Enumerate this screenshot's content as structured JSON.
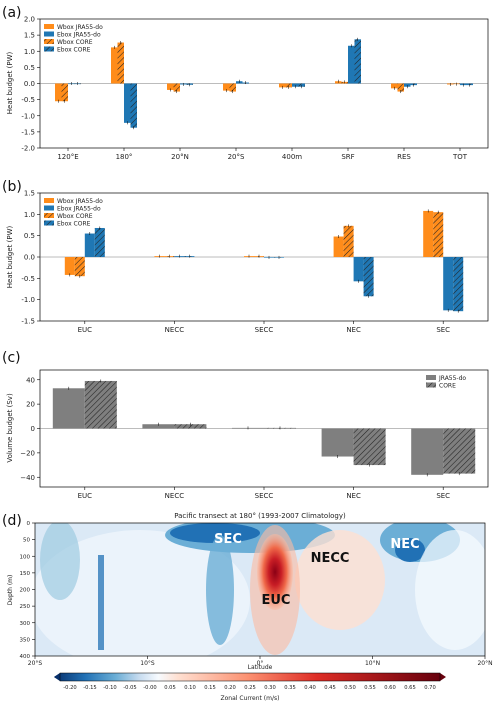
{
  "colors": {
    "wbox": "#ff8c1a",
    "ebox": "#1f77b4",
    "gray": "#7f7f7f",
    "hatch": "#222222"
  },
  "panels": {
    "a": "(a)",
    "b": "(b)",
    "c": "(c)",
    "d": "(d)"
  },
  "chart_data": [
    {
      "type": "bar",
      "ylabel": "Heat budget (PW)",
      "ylim": [
        -2.0,
        2.0
      ],
      "yticks": [
        "-2.0",
        "-1.5",
        "-1.0",
        "-0.5",
        "0.0",
        "0.5",
        "1.0",
        "1.5",
        "2.0"
      ],
      "categories": [
        "120°E",
        "180°",
        "20°N",
        "20°S",
        "400m",
        "SRF",
        "RES",
        "TOT"
      ],
      "legend_position": "top-left",
      "series": [
        {
          "name": "Wbox JRA55-do",
          "style": "wbox",
          "values": [
            -0.55,
            1.12,
            -0.2,
            -0.22,
            -0.12,
            0.07,
            -0.15,
            -0.03
          ]
        },
        {
          "name": "Ebox JRA55-do",
          "style": "ebox",
          "values": [
            0.0,
            -1.22,
            -0.03,
            0.07,
            -0.1,
            1.17,
            -0.1,
            -0.05
          ]
        },
        {
          "name": "Wbox CORE",
          "style": "wbox-hatch",
          "values": [
            -0.55,
            1.27,
            -0.25,
            -0.25,
            -0.12,
            0.05,
            -0.25,
            -0.02
          ]
        },
        {
          "name": "Ebox CORE",
          "style": "ebox-hatch",
          "values": [
            0.0,
            -1.37,
            -0.04,
            0.03,
            -0.1,
            1.37,
            -0.05,
            -0.05
          ]
        }
      ]
    },
    {
      "type": "bar",
      "ylabel": "Heat budget (PW)",
      "ylim": [
        -1.5,
        1.5
      ],
      "yticks": [
        "-1.5",
        "-1.0",
        "-0.5",
        "0.0",
        "0.5",
        "1.0",
        "1.5"
      ],
      "categories": [
        "EUC",
        "NECC",
        "SECC",
        "NEC",
        "SEC"
      ],
      "legend_position": "top-left",
      "series": [
        {
          "name": "Wbox JRA55-do",
          "style": "wbox",
          "values": [
            -0.42,
            0.02,
            0.02,
            0.48,
            1.08
          ]
        },
        {
          "name": "Ebox JRA55-do",
          "style": "ebox",
          "values": [
            0.55,
            0.02,
            -0.01,
            -0.57,
            -1.25
          ]
        },
        {
          "name": "Wbox CORE",
          "style": "wbox-hatch",
          "values": [
            -0.45,
            0.02,
            0.02,
            0.73,
            1.05
          ]
        },
        {
          "name": "Ebox CORE",
          "style": "ebox-hatch",
          "values": [
            0.68,
            0.02,
            -0.01,
            -0.92,
            -1.27
          ]
        }
      ]
    },
    {
      "type": "bar",
      "ylabel": "Volume budget (Sv)",
      "ylim": [
        -48,
        48
      ],
      "yticks": [
        "−40",
        "−20",
        "0",
        "20",
        "40"
      ],
      "ytick_values": [
        -40,
        -20,
        0,
        20,
        40
      ],
      "categories": [
        "EUC",
        "NECC",
        "SECC",
        "NEC",
        "SEC"
      ],
      "legend_position": "top-right",
      "series": [
        {
          "name": "JRA55-do",
          "style": "gray",
          "values": [
            33,
            3.5,
            0.5,
            -23,
            -38
          ]
        },
        {
          "name": "CORE",
          "style": "gray-hatch",
          "values": [
            39,
            3.5,
            0.5,
            -30,
            -37
          ]
        }
      ]
    },
    {
      "type": "heatmap",
      "title": "Pacific transect at 180° (1993-2007 Climatology)",
      "xlabel": "Latitude",
      "ylabel": "Depth (m)",
      "xticks": [
        "20°S",
        "10°S",
        "0°",
        "10°N",
        "20°N"
      ],
      "yticks": [
        "0",
        "50",
        "100",
        "150",
        "200",
        "250",
        "300",
        "350",
        "400"
      ],
      "xlim": [
        -20,
        20
      ],
      "ylim": [
        400,
        0
      ],
      "colorbar_label": "Zonal Current (m/s)",
      "colorbar_ticks": [
        "-0.20",
        "-0.15",
        "-0.10",
        "-0.05",
        "-0.00",
        "0.05",
        "0.10",
        "0.15",
        "0.20",
        "0.25",
        "0.30",
        "0.35",
        "0.40",
        "0.45",
        "0.50",
        "0.55",
        "0.60",
        "0.65",
        "0.70"
      ],
      "current_labels": [
        "SEC",
        "NECC",
        "NEC",
        "EUC"
      ]
    }
  ]
}
